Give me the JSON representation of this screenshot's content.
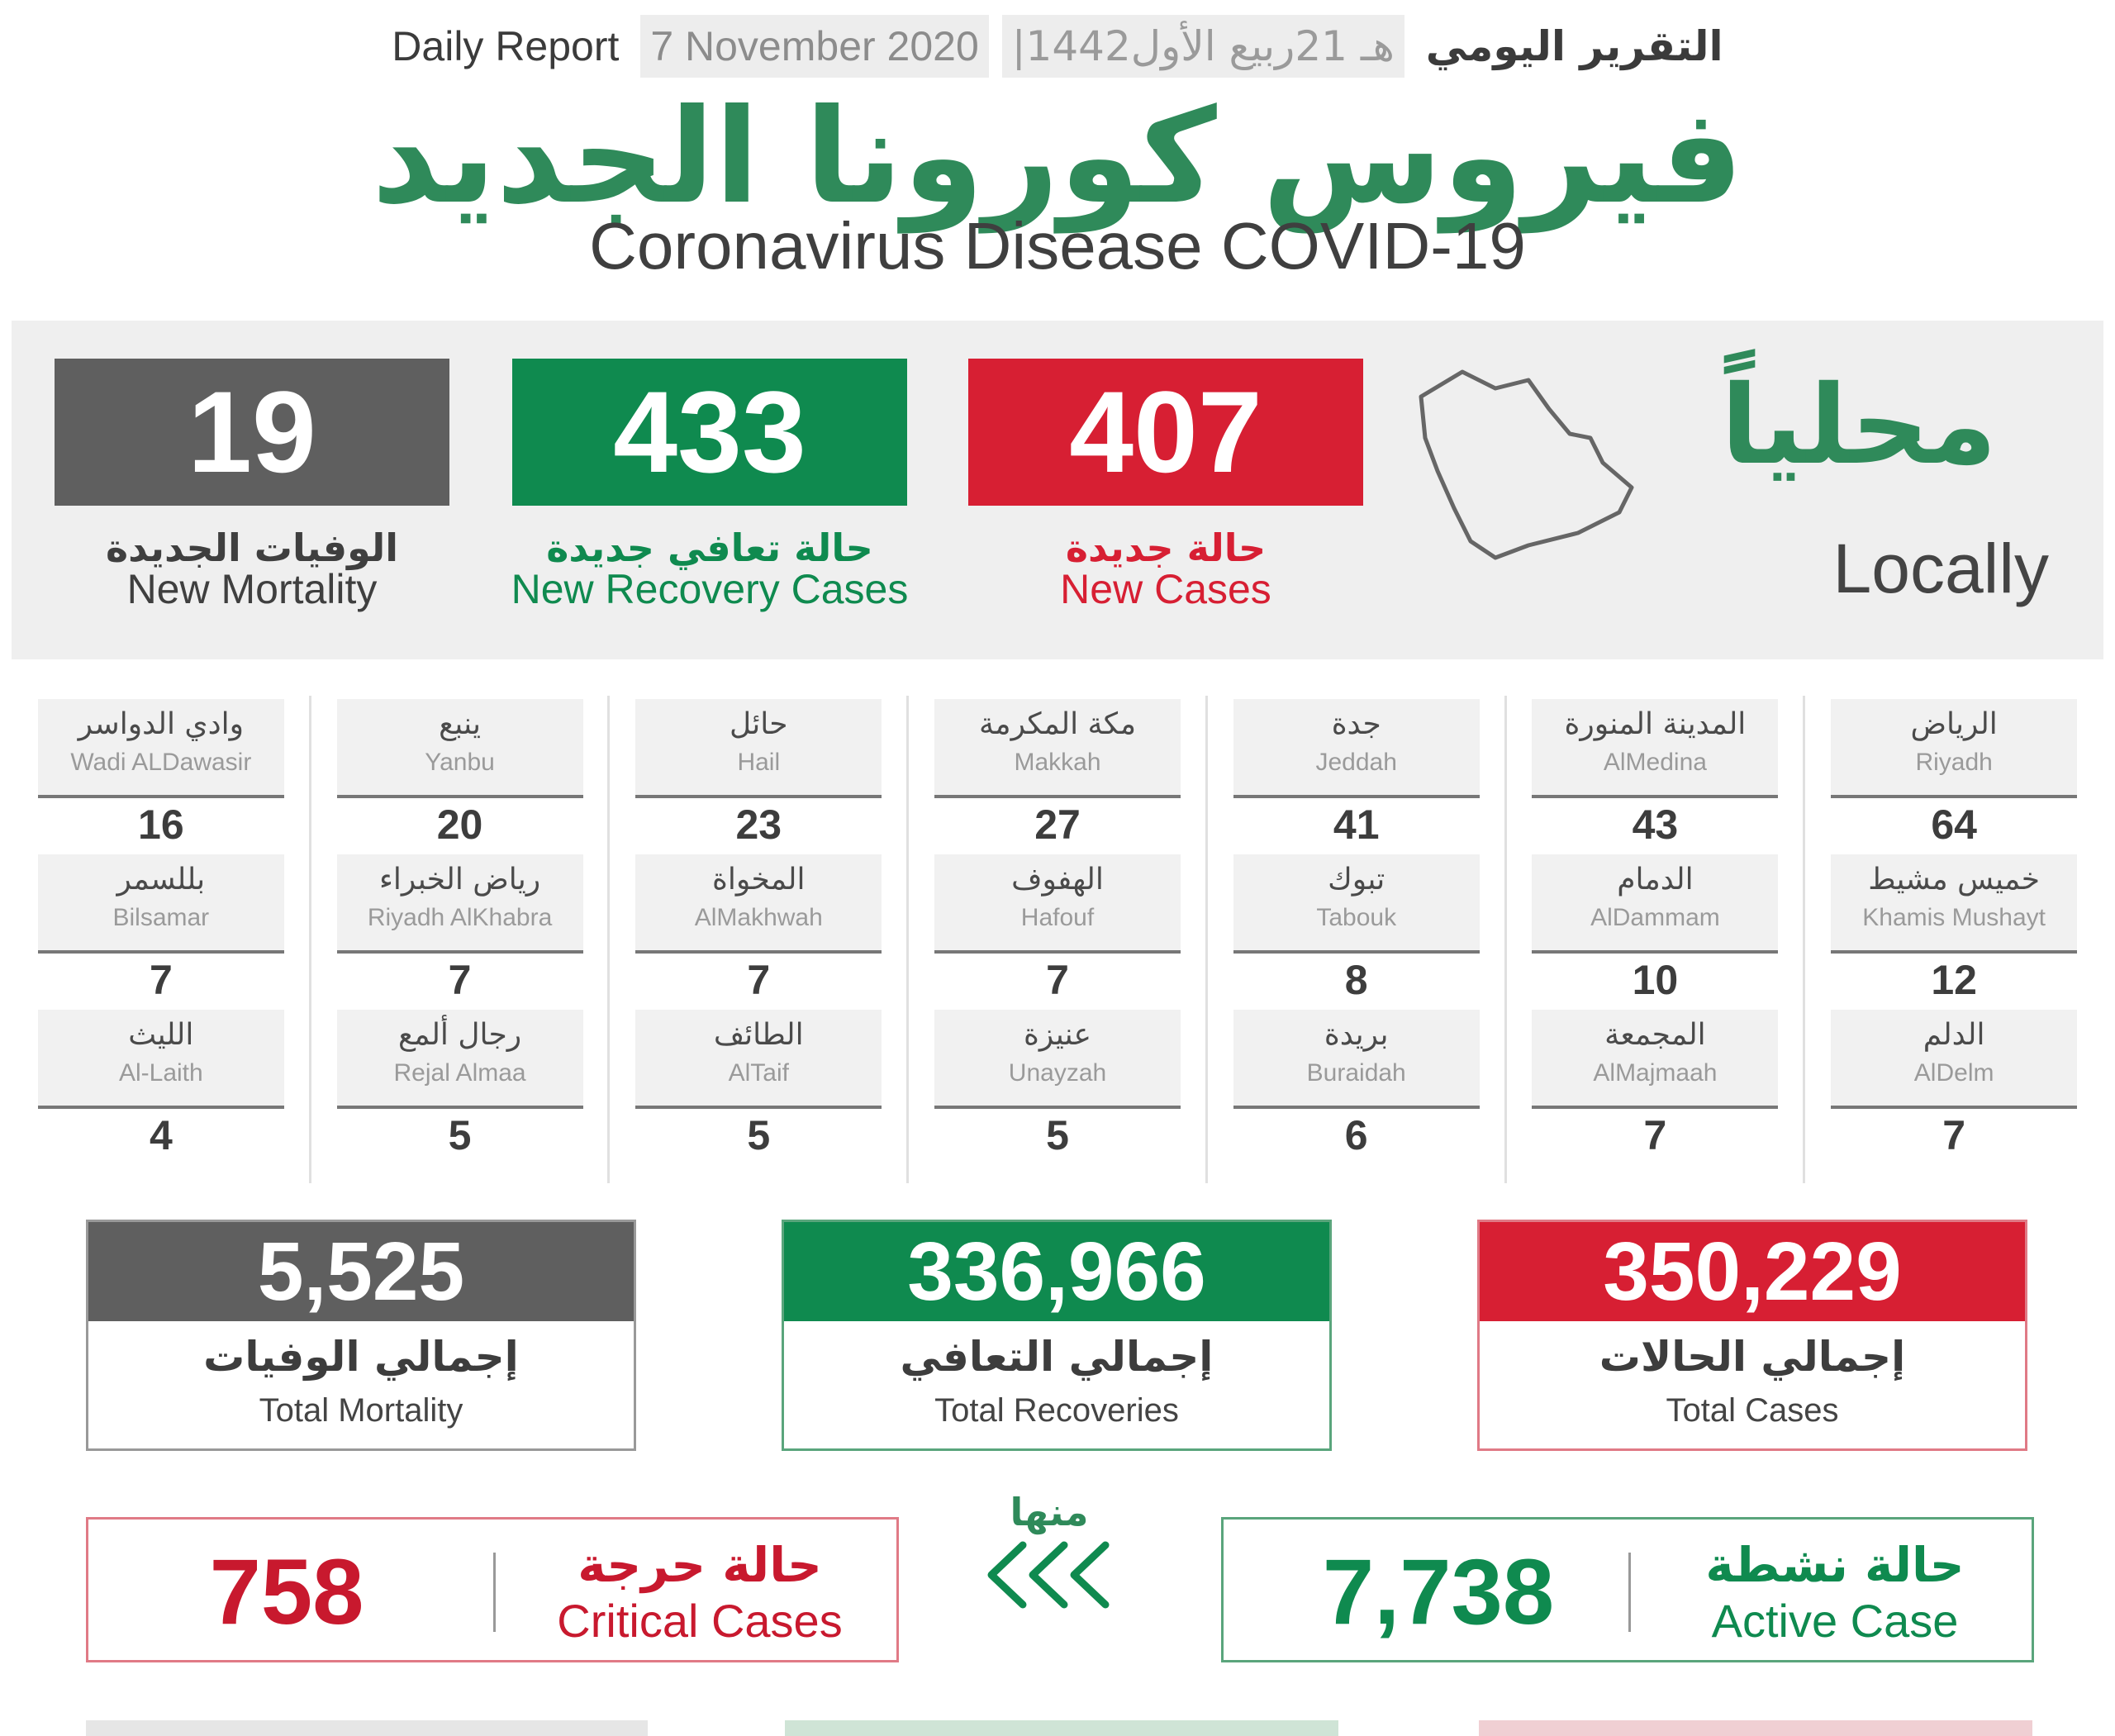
{
  "header": {
    "daily_report_en": "Daily Report",
    "date_en": "7 November 2020",
    "date_hijri": "|1442هـ 21ربيع الأول",
    "daily_report_ar": "التقرير اليومي",
    "title_ar": "فيروس كورونا الجديد",
    "title_en": "Coronavirus Disease COVID-19"
  },
  "locally": {
    "label_ar": "محلياً",
    "label_en": "Locally",
    "new_cases": {
      "value": "407",
      "label_ar": "حالة جديدة",
      "label_en": "New Cases"
    },
    "new_recovery": {
      "value": "433",
      "label_ar": "حالة تعافي جديدة",
      "label_en": "New Recovery Cases"
    },
    "new_mortality": {
      "value": "19",
      "label_ar": "الوفيات الجديدة",
      "label_en": "New Mortality"
    }
  },
  "cities": [
    [
      {
        "ar": "الرياض",
        "en": "Riyadh",
        "value": "64"
      },
      {
        "ar": "خميس مشيط",
        "en": "Khamis Mushayt",
        "value": "12"
      },
      {
        "ar": "الدلم",
        "en": "AlDelm",
        "value": "7"
      }
    ],
    [
      {
        "ar": "المدينة المنورة",
        "en": "AlMedina",
        "value": "43"
      },
      {
        "ar": "الدمام",
        "en": "AlDammam",
        "value": "10"
      },
      {
        "ar": "المجمعة",
        "en": "AlMajmaah",
        "value": "7"
      }
    ],
    [
      {
        "ar": "جدة",
        "en": "Jeddah",
        "value": "41"
      },
      {
        "ar": "تبوك",
        "en": "Tabouk",
        "value": "8"
      },
      {
        "ar": "بريدة",
        "en": "Buraidah",
        "value": "6"
      }
    ],
    [
      {
        "ar": "مكة المكرمة",
        "en": "Makkah",
        "value": "27"
      },
      {
        "ar": "الهفوف",
        "en": "Hafouf",
        "value": "7"
      },
      {
        "ar": "عنيزة",
        "en": "Unayzah",
        "value": "5"
      }
    ],
    [
      {
        "ar": "حائل",
        "en": "Hail",
        "value": "23"
      },
      {
        "ar": "المخواة",
        "en": "AlMakhwah",
        "value": "7"
      },
      {
        "ar": "الطائف",
        "en": "AlTaif",
        "value": "5"
      }
    ],
    [
      {
        "ar": "ينبع",
        "en": "Yanbu",
        "value": "20"
      },
      {
        "ar": "رياض الخبراء",
        "en": "Riyadh AlKhabra",
        "value": "7"
      },
      {
        "ar": "رجال ألمع",
        "en": "Rejal Almaa",
        "value": "5"
      }
    ],
    [
      {
        "ar": "وادي الدواسر",
        "en": "Wadi ALDawasir",
        "value": "16"
      },
      {
        "ar": "بللسمر",
        "en": "Bilsamar",
        "value": "7"
      },
      {
        "ar": "الليث",
        "en": "Al-Laith",
        "value": "4"
      }
    ]
  ],
  "totals": {
    "cases": {
      "value": "350,229",
      "label_ar": "إجمالي الحالات",
      "label_en": "Total Cases"
    },
    "recoveries": {
      "value": "336,966",
      "label_ar": "إجمالي التعافي",
      "label_en": "Total Recoveries"
    },
    "mortality": {
      "value": "5,525",
      "label_ar": "إجمالي الوفيات",
      "label_en": "Total Mortality"
    }
  },
  "breakdown": {
    "of_which_ar": "منها",
    "active": {
      "value": "7,738",
      "label_ar": "حالة نشطة",
      "label_en": "Active Case"
    },
    "critical": {
      "value": "758",
      "label_ar": "حالة حرجة",
      "label_en": "Critical Cases"
    }
  },
  "colors": {
    "red": "#d71f33",
    "green": "#0f8a4f",
    "gray": "#5f5f5f",
    "title_green": "#2f8a5a"
  }
}
